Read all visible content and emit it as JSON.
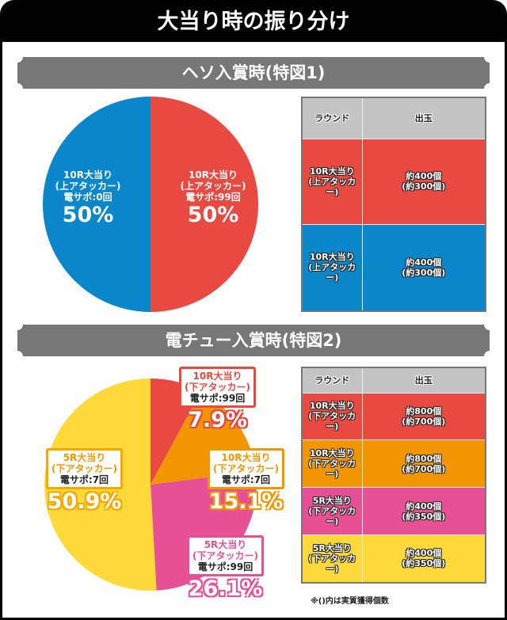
{
  "title": "大当り時の振り分け",
  "sections": [
    {
      "header": "ヘソ入賞時(特図1)",
      "chart_data": {
        "type": "pie",
        "title": "ヘソ入賞時(特図1)",
        "slices": [
          {
            "label": "10R大当り\n(上アタッカー)\n電サポ:99回",
            "line1": "10R大当り",
            "line2": "(上アタッカー)",
            "line3": "電サポ:99回",
            "value": 50,
            "pct": "50%",
            "color": "#e84a41"
          },
          {
            "label": "10R大当り\n(上アタッカー)\n電サポ:0回",
            "line1": "10R大当り",
            "line2": "(上アタッカー)",
            "line3": "電サポ:0回",
            "value": 50,
            "pct": "50%",
            "color": "#0a87cb"
          }
        ]
      },
      "table": {
        "headers": [
          "ラウンド",
          "出玉"
        ],
        "rows": [
          {
            "round1": "10R大当り",
            "round2": "(上アタッカー)",
            "out1": "約400個",
            "out2": "(約300個)",
            "color": "#e84a41"
          },
          {
            "round1": "10R大当り",
            "round2": "(上アタッカー)",
            "out1": "約400個",
            "out2": "(約300個)",
            "color": "#0a87cb"
          }
        ]
      }
    },
    {
      "header": "電チュー入賞時(特図2)",
      "chart_data": {
        "type": "pie",
        "title": "電チュー入賞時(特図2)",
        "slices": [
          {
            "line1": "10R大当り",
            "line2": "(下アタッカー)",
            "line3": "電サポ:99回",
            "value": 7.9,
            "pct": "7.9%",
            "color": "#e84a41"
          },
          {
            "line1": "10R大当り",
            "line2": "(下アタッカー)",
            "line3": "電サポ:7回",
            "value": 15.1,
            "pct": "15.1%",
            "color": "#f29600"
          },
          {
            "line1": "5R大当り",
            "line2": "(下アタッカー)",
            "line3": "電サポ:99回",
            "value": 26.1,
            "pct": "26.1%",
            "color": "#e85096"
          },
          {
            "line1": "5R大当り",
            "line2": "(下アタッカー)",
            "line3": "電サポ:7回",
            "value": 50.9,
            "pct": "50.9%",
            "color": "#fed93a"
          }
        ]
      },
      "table": {
        "headers": [
          "ラウンド",
          "出玉"
        ],
        "rows": [
          {
            "round1": "10R大当り",
            "round2": "(下アタッカー)",
            "out1": "約800個",
            "out2": "(約700個)",
            "color": "#e84a41"
          },
          {
            "round1": "10R大当り",
            "round2": "(下アタッカー)",
            "out1": "約800個",
            "out2": "(約700個)",
            "color": "#f29600"
          },
          {
            "round1": "5R大当り",
            "round2": "(下アタッカー)",
            "out1": "約400個",
            "out2": "(約350個)",
            "color": "#e85096"
          },
          {
            "round1": "5R大当り",
            "round2": "(下アタッカー)",
            "out1": "約400個",
            "out2": "(約350個)",
            "color": "#fed93a"
          }
        ]
      }
    }
  ],
  "note": "※()内は実質獲得個数"
}
